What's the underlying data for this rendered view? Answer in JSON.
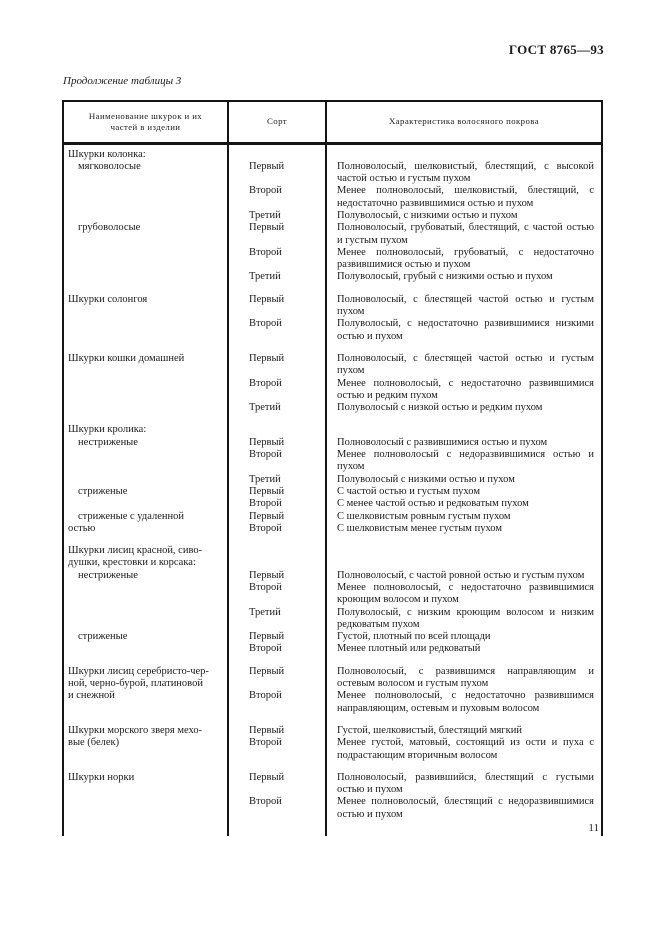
{
  "page": {
    "doc_number": "ГОСТ 8765—93",
    "table_caption": "Продолжение таблицы 3",
    "page_number": "11"
  },
  "table": {
    "columns": [
      "Наименование шкурок и их\nчастей в изделии",
      "Сорт",
      "Характеристика волосяного покрова"
    ],
    "groups": [
      {
        "rows": [
          {
            "name": "Шкурки колонка:",
            "span": 1
          },
          {
            "name": "мягковолосые",
            "indent": true,
            "span": 3,
            "sort": "Первый",
            "text": "Полноволосый, шелковистый, блестящий, с высокой частой остью и густым пухом"
          },
          {
            "sort": "Второй",
            "text": "Менее полноволосый, шелковистый, блестящий, с недостаточно развившимися остью и пухом"
          },
          {
            "sort": "Третий",
            "text": "Полуволосый, с низкими остью и пухом"
          },
          {
            "name": "грубоволосые",
            "indent": true,
            "span": 3,
            "sort": "Первый",
            "text": "Полноволосый, грубоватый, блестящий, с частой остью и густым пухом"
          },
          {
            "sort": "Второй",
            "text": "Менее полноволосый, грубоватый, с недостаточно развившимися остью и пухом"
          },
          {
            "sort": "Третий",
            "text": "Полуволосый, грубый с низкими остью и пухом"
          }
        ]
      },
      {
        "rows": [
          {
            "name": "Шкурки солонгоя",
            "span": 2,
            "sort": "Первый",
            "text": "Полноволосый, с блестящей частой остью и густым пухом"
          },
          {
            "sort": "Второй",
            "text": "Полуволосый, с недостаточно развившимися низкими остью и пухом"
          }
        ]
      },
      {
        "rows": [
          {
            "name": "Шкурки кошки домашней",
            "span": 3,
            "sort": "Первый",
            "text": "Полноволосый, с блестящей частой остью и густым пухом"
          },
          {
            "sort": "Второй",
            "text": "Менее полноволосый, с недостаточно развившимися остью и редким пухом"
          },
          {
            "sort": "Третий",
            "text": "Полуволосый с низкой остью и редким пухом"
          }
        ]
      },
      {
        "rows": [
          {
            "name": "Шкурки кролика:",
            "span": 1
          },
          {
            "name": "нестриженые",
            "indent": true,
            "span": 3,
            "sort": "Первый",
            "text": "Полноволосый с развившимися остью и пухом"
          },
          {
            "sort": "Второй",
            "text": "Менее полноволосый с недоразвившимися остью и пухом"
          },
          {
            "sort": "Третий",
            "text": "Полуволосый с низкими остью и пухом"
          },
          {
            "name": "стриженые",
            "indent": true,
            "span": 2,
            "sort": "Первый",
            "text": "С частой остью и густым пухом"
          },
          {
            "sort": "Второй",
            "text": "С менее частой остью и редковатым пухом"
          },
          {
            "name": "стриженые с удаленной\nостью",
            "indent": true,
            "span": 2,
            "sort": "Первый",
            "text": "С шелковистым ровным густым пухом"
          },
          {
            "sort": "Второй",
            "text": "С шелковистым менее густым пухом"
          }
        ]
      },
      {
        "rows": [
          {
            "name": "Шкурки лисиц красной, сиво-\nдушки, крестовки и корсака:",
            "span": 1
          },
          {
            "name": "нестриженые",
            "indent": true,
            "span": 3,
            "sort": "Первый",
            "text": "Полноволосый, с частой ровной остью и густым пухом"
          },
          {
            "sort": "Второй",
            "text": "Менее полноволосый, с недостаточно развившимися кроющим волосом и пухом"
          },
          {
            "sort": "Третий",
            "text": "Полуволосый, с низким кроющим волосом и низким редковатым пухом"
          },
          {
            "name": "стриженые",
            "indent": true,
            "span": 2,
            "sort": "Первый",
            "text": "Густой, плотный по всей площади"
          },
          {
            "sort": "Второй",
            "text": "Менее плотный или редковатый"
          }
        ]
      },
      {
        "rows": [
          {
            "name": "Шкурки лисиц серебристо-чер-\nной, черно-бурой, платиновой\nи снежной",
            "span": 2,
            "sort": "Первый",
            "text": "Полноволосый, с развившимся направляющим и остевым волосом и густым пухом"
          },
          {
            "sort": "Второй",
            "text": "Менее полноволосый, с недостаточно развившимся направляющим, остевым и пуховым волосом"
          }
        ]
      },
      {
        "rows": [
          {
            "name": "Шкурки морского зверя мехо-\nвые (белек)",
            "span": 2,
            "sort": "Первый",
            "text": "Густой, шелковистый, блестящий мягкий"
          },
          {
            "sort": "Второй",
            "text": "Менее густой, матовый, состоящий из ости и пуха с подрастающим вторичным волосом"
          }
        ]
      },
      {
        "rows": [
          {
            "name": "Шкурки норки",
            "span": 2,
            "sort": "Первый",
            "text": "Полноволосый, развившийся, блестящий с густыми остью и пухом"
          },
          {
            "sort": "Второй",
            "text": "Менее полноволосый, блестящий с недоразвившимися остью и пухом"
          }
        ]
      }
    ]
  }
}
